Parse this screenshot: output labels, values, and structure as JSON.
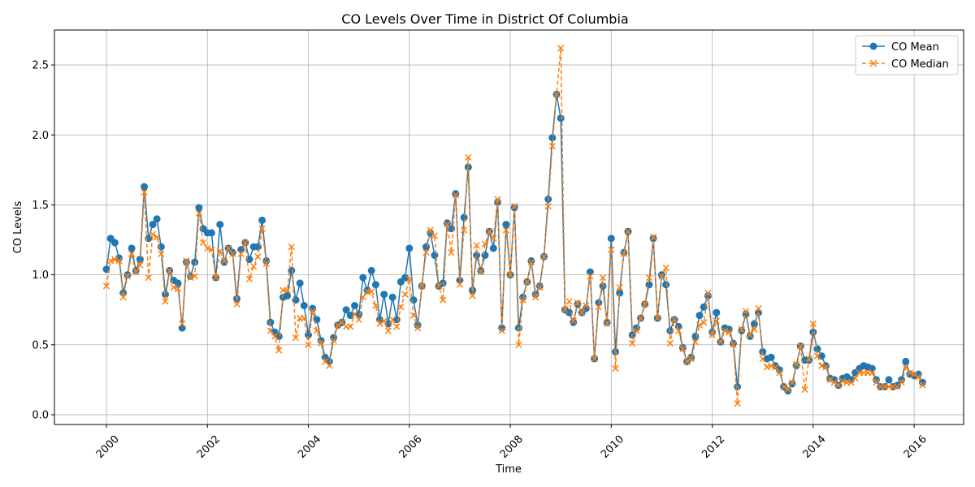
{
  "chart_data": {
    "type": "line",
    "title": "CO Levels Over Time in District Of Columbia",
    "xlabel": "Time",
    "ylabel": "CO Levels",
    "xlim": [
      1998.97,
      2016.98
    ],
    "ylim": [
      -0.07,
      2.75
    ],
    "x_ticks": [
      2000,
      2002,
      2004,
      2006,
      2008,
      2010,
      2012,
      2014,
      2016
    ],
    "x_tick_labels": [
      "2000",
      "2002",
      "2004",
      "2006",
      "2008",
      "2010",
      "2012",
      "2014",
      "2016"
    ],
    "y_ticks": [
      0.0,
      0.5,
      1.0,
      1.5,
      2.0,
      2.5
    ],
    "y_tick_labels": [
      "0.0",
      "0.5",
      "1.0",
      "1.5",
      "2.0",
      "2.5"
    ],
    "grid": true,
    "legend_position": "top-right",
    "series": [
      {
        "name": "CO Mean",
        "color": "#1f77b4",
        "marker": "circle",
        "line_style": "solid",
        "values": [
          1.04,
          1.26,
          1.23,
          1.12,
          0.87,
          1.0,
          1.19,
          1.03,
          1.11,
          1.63,
          1.26,
          1.36,
          1.4,
          1.2,
          0.86,
          1.03,
          0.96,
          0.94,
          0.62,
          1.09,
          0.99,
          1.09,
          1.48,
          1.33,
          1.3,
          1.3,
          0.98,
          1.36,
          1.09,
          1.19,
          1.16,
          0.83,
          1.18,
          1.23,
          1.11,
          1.2,
          1.2,
          1.39,
          1.1,
          0.66,
          0.59,
          0.56,
          0.84,
          0.85,
          1.03,
          0.82,
          0.94,
          0.78,
          0.57,
          0.76,
          0.68,
          0.53,
          0.41,
          0.38,
          0.55,
          0.64,
          0.66,
          0.75,
          0.71,
          0.78,
          0.72,
          0.98,
          0.89,
          1.03,
          0.93,
          0.68,
          0.86,
          0.65,
          0.84,
          0.68,
          0.95,
          0.98,
          1.19,
          0.82,
          0.64,
          0.92,
          1.2,
          1.3,
          1.14,
          0.92,
          0.94,
          1.37,
          1.33,
          1.58,
          0.96,
          1.41,
          1.77,
          0.89,
          1.14,
          1.03,
          1.14,
          1.31,
          1.19,
          1.52,
          0.62,
          1.36,
          1.0,
          1.48,
          0.62,
          0.84,
          0.95,
          1.1,
          0.86,
          0.92,
          1.13,
          1.54,
          1.98,
          2.29,
          2.12,
          0.75,
          0.73,
          0.66,
          0.79,
          0.73,
          0.76,
          1.02,
          0.4,
          0.8,
          0.92,
          0.66,
          1.26,
          0.45,
          0.87,
          1.16,
          1.31,
          0.57,
          0.62,
          0.69,
          0.79,
          0.93,
          1.26,
          0.69,
          1.0,
          0.93,
          0.6,
          0.68,
          0.63,
          0.48,
          0.38,
          0.41,
          0.56,
          0.71,
          0.77,
          0.85,
          0.59,
          0.73,
          0.52,
          0.62,
          0.61,
          0.51,
          0.2,
          0.6,
          0.72,
          0.56,
          0.65,
          0.73,
          0.45,
          0.4,
          0.41,
          0.35,
          0.32,
          0.2,
          0.17,
          0.22,
          0.35,
          0.49,
          0.39,
          0.39,
          0.59,
          0.47,
          0.42,
          0.35,
          0.26,
          0.25,
          0.21,
          0.26,
          0.27,
          0.25,
          0.3,
          0.33,
          0.35,
          0.34,
          0.33,
          0.25,
          0.2,
          0.2,
          0.25,
          0.2,
          0.21,
          0.25,
          0.38,
          0.29,
          0.28,
          0.29,
          0.23
        ]
      },
      {
        "name": "CO Median",
        "color": "#ff7f0e",
        "marker": "x",
        "line_style": "dashed",
        "values": [
          0.92,
          1.1,
          1.11,
          1.1,
          0.84,
          0.99,
          1.15,
          1.02,
          1.07,
          1.59,
          0.98,
          1.29,
          1.27,
          1.15,
          0.81,
          1.03,
          0.91,
          0.9,
          0.65,
          1.1,
          0.98,
          0.99,
          1.44,
          1.23,
          1.19,
          1.18,
          0.98,
          1.17,
          1.1,
          1.19,
          1.15,
          0.79,
          1.15,
          1.23,
          0.97,
          1.06,
          1.13,
          1.33,
          1.08,
          0.6,
          0.56,
          0.46,
          0.89,
          0.89,
          1.2,
          0.55,
          0.69,
          0.69,
          0.5,
          0.74,
          0.6,
          0.51,
          0.38,
          0.35,
          0.53,
          0.64,
          0.66,
          0.63,
          0.63,
          0.72,
          0.68,
          0.84,
          0.88,
          0.88,
          0.78,
          0.65,
          0.67,
          0.6,
          0.68,
          0.63,
          0.77,
          0.86,
          0.97,
          0.71,
          0.62,
          0.92,
          1.16,
          1.32,
          1.28,
          0.92,
          0.82,
          1.36,
          1.16,
          1.57,
          0.93,
          1.32,
          1.84,
          0.85,
          1.21,
          1.02,
          1.22,
          1.31,
          1.26,
          1.54,
          0.6,
          1.32,
          1.0,
          1.49,
          0.5,
          0.82,
          0.95,
          1.09,
          0.84,
          0.91,
          1.13,
          1.49,
          1.92,
          2.29,
          2.62,
          0.75,
          0.81,
          0.67,
          0.8,
          0.73,
          0.78,
          0.99,
          0.4,
          0.77,
          0.98,
          0.65,
          1.18,
          0.33,
          0.91,
          1.15,
          1.31,
          0.51,
          0.6,
          0.69,
          0.79,
          0.98,
          1.27,
          0.69,
          0.99,
          1.05,
          0.51,
          0.68,
          0.6,
          0.47,
          0.38,
          0.4,
          0.52,
          0.64,
          0.66,
          0.87,
          0.57,
          0.67,
          0.52,
          0.6,
          0.59,
          0.5,
          0.08,
          0.61,
          0.74,
          0.57,
          0.61,
          0.76,
          0.4,
          0.34,
          0.35,
          0.34,
          0.3,
          0.2,
          0.18,
          0.23,
          0.36,
          0.49,
          0.18,
          0.4,
          0.65,
          0.42,
          0.35,
          0.34,
          0.25,
          0.23,
          0.21,
          0.24,
          0.23,
          0.23,
          0.26,
          0.3,
          0.3,
          0.3,
          0.3,
          0.23,
          0.2,
          0.2,
          0.2,
          0.2,
          0.2,
          0.23,
          0.34,
          0.3,
          0.29,
          0.27,
          0.21
        ]
      }
    ]
  }
}
